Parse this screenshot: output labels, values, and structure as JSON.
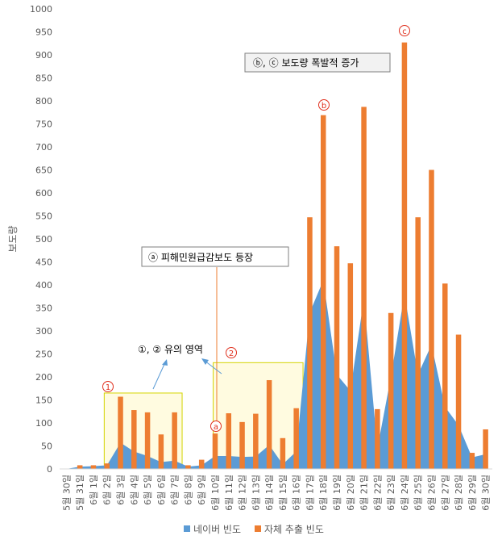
{
  "chart_data": {
    "type": "bar",
    "ylabel": "보도량",
    "ylim": [
      0,
      1000
    ],
    "yticks": [
      0,
      50,
      100,
      150,
      200,
      250,
      300,
      350,
      400,
      450,
      500,
      550,
      600,
      650,
      700,
      750,
      800,
      850,
      900,
      950,
      1000
    ],
    "grid": false,
    "legend_position": "bottom",
    "categories": [
      "5월 30일",
      "5월 31일",
      "6월 1일",
      "6월 2일",
      "6월 3일",
      "6월 4일",
      "6월 5일",
      "6월 6일",
      "6월 7일",
      "6월 8일",
      "6월 9일",
      "6월 10일",
      "6월 11일",
      "6월 12일",
      "6월 13일",
      "6월 14일",
      "6월 15일",
      "6월 16일",
      "6월 17일",
      "6월 18일",
      "6월 19일",
      "6월 20일",
      "6월 21일",
      "6월 22일",
      "6월 23일",
      "6월 24일",
      "6월 25일",
      "6월 26일",
      "6월 27일",
      "6월 28일",
      "6월 29일",
      "6월 30일"
    ],
    "series": [
      {
        "name": "네이버 빈도",
        "style": "area",
        "color": "#5b9bd5",
        "values": [
          0,
          5,
          6,
          8,
          57,
          38,
          28,
          15,
          18,
          5,
          8,
          28,
          28,
          26,
          27,
          52,
          10,
          38,
          340,
          410,
          205,
          170,
          370,
          45,
          200,
          380,
          205,
          270,
          135,
          95,
          25,
          32
        ]
      },
      {
        "name": "자체 추출 빈도",
        "style": "bar",
        "color": "#ed7d31",
        "values": [
          0,
          8,
          8,
          12,
          157,
          128,
          123,
          75,
          123,
          8,
          20,
          77,
          121,
          102,
          120,
          193,
          67,
          132,
          547,
          769,
          484,
          447,
          787,
          130,
          339,
          927,
          547,
          650,
          403,
          292,
          35,
          86
        ]
      }
    ],
    "annotations": {
      "box_b_c": "ⓑ, ⓒ 보도량 폭발적 증가",
      "box_a": "ⓐ 피해민원급감보도 등장",
      "region_note": "①, ② 유의 영역",
      "region1": "①",
      "region2": "②",
      "mark_a": "a",
      "mark_b": "b",
      "mark_c": "c"
    },
    "colors": {
      "region_stroke": "#d4d400",
      "region_fill": "#fffbe0",
      "circle_red": "#e0301e",
      "arrow": "#5b9bd5"
    }
  }
}
